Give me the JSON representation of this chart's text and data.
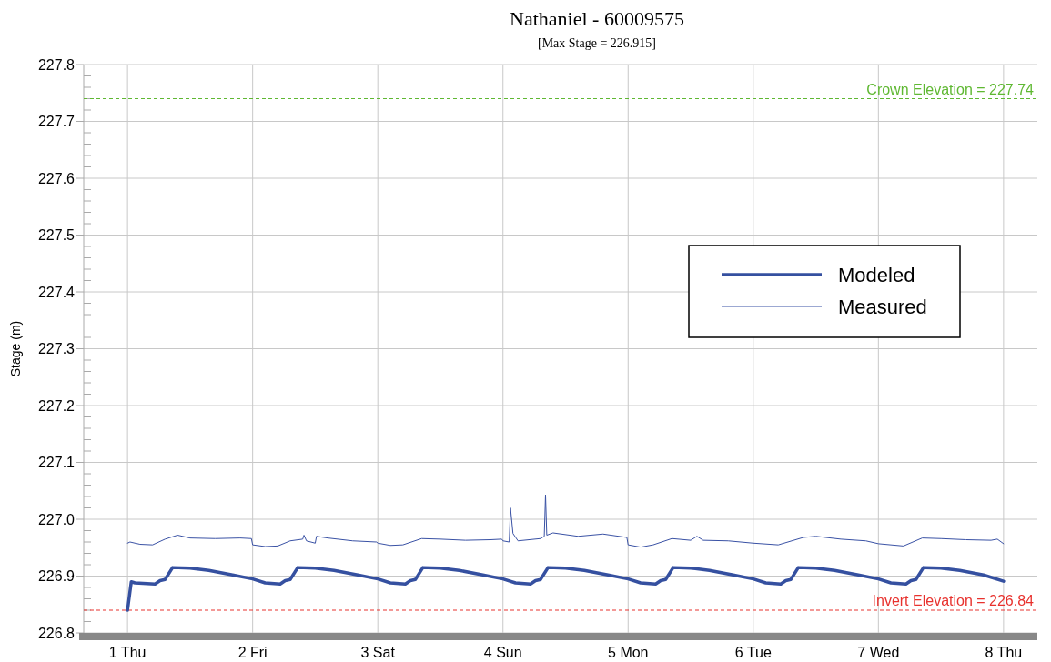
{
  "chart_data": {
    "type": "line",
    "title": "Nathaniel - 60009575",
    "subtitle": "[Max Stage = 226.915]",
    "ylabel": "Stage (m)",
    "xlim": [
      0.65,
      8.27
    ],
    "xticks": [
      {
        "value": 1,
        "label": "1 Thu"
      },
      {
        "value": 2,
        "label": "2 Fri"
      },
      {
        "value": 3,
        "label": "3 Sat"
      },
      {
        "value": 4,
        "label": "4 Sun"
      },
      {
        "value": 5,
        "label": "5 Mon"
      },
      {
        "value": 6,
        "label": "6 Tue"
      },
      {
        "value": 7,
        "label": "7 Wed"
      },
      {
        "value": 8,
        "label": "8 Thu"
      }
    ],
    "ylim": [
      226.8,
      227.8
    ],
    "yticks": [
      226.8,
      {
        "value": 226.82,
        "label": null
      },
      {
        "value": 226.84,
        "label": null
      },
      {
        "value": 226.86,
        "label": null
      },
      {
        "value": 226.88,
        "label": null
      },
      226.9,
      {
        "value": 226.92,
        "label": null
      },
      {
        "value": 226.94,
        "label": null
      },
      {
        "value": 226.96,
        "label": null
      },
      {
        "value": 226.98,
        "label": null
      },
      {
        "value": 227.0,
        "label": "227.0"
      },
      {
        "value": 227.02,
        "label": null
      },
      {
        "value": 227.04,
        "label": null
      },
      {
        "value": 227.06,
        "label": null
      },
      {
        "value": 227.08,
        "label": null
      },
      227.1,
      {
        "value": 227.12,
        "label": null
      },
      {
        "value": 227.14,
        "label": null
      },
      {
        "value": 227.16,
        "label": null
      },
      {
        "value": 227.18,
        "label": null
      },
      227.2,
      {
        "value": 227.22,
        "label": null
      },
      {
        "value": 227.24,
        "label": null
      },
      {
        "value": 227.26,
        "label": null
      },
      {
        "value": 227.28,
        "label": null
      },
      227.3,
      {
        "value": 227.32,
        "label": null
      },
      {
        "value": 227.34,
        "label": null
      },
      {
        "value": 227.36,
        "label": null
      },
      {
        "value": 227.38,
        "label": null
      },
      227.4,
      {
        "value": 227.42,
        "label": null
      },
      {
        "value": 227.44,
        "label": null
      },
      {
        "value": 227.46,
        "label": null
      },
      {
        "value": 227.48,
        "label": null
      },
      227.5,
      {
        "value": 227.52,
        "label": null
      },
      {
        "value": 227.54,
        "label": null
      },
      {
        "value": 227.56,
        "label": null
      },
      {
        "value": 227.58,
        "label": null
      },
      227.6,
      {
        "value": 227.62,
        "label": null
      },
      {
        "value": 227.64,
        "label": null
      },
      {
        "value": 227.66,
        "label": null
      },
      {
        "value": 227.68,
        "label": null
      },
      227.7,
      {
        "value": 227.72,
        "label": null
      },
      {
        "value": 227.74,
        "label": null
      },
      {
        "value": 227.76,
        "label": null
      },
      {
        "value": 227.78,
        "label": null
      },
      227.8
    ],
    "grid": true,
    "legend": "right",
    "marker": "none",
    "line_style": "solid",
    "ref_lines": [
      {
        "axis": "y",
        "value": 227.74,
        "label": "Crown Elevation = 227.74",
        "color": "#5fb832",
        "line_style": "dashed"
      },
      {
        "axis": "y",
        "value": 226.84,
        "label": "Invert Elevation = 226.84",
        "color": "#e8322e",
        "line_style": "dashed"
      }
    ],
    "series": [
      {
        "name": "Modeled",
        "color": "#3550a0",
        "x": [
          1.0,
          1.03,
          1.06,
          1.22,
          1.26,
          1.3,
          1.36,
          1.5,
          1.65,
          1.84,
          2.0,
          2.1,
          2.22,
          2.26,
          2.3,
          2.36,
          2.5,
          2.65,
          2.84,
          3.0,
          3.1,
          3.22,
          3.26,
          3.3,
          3.36,
          3.5,
          3.65,
          3.84,
          4.0,
          4.1,
          4.22,
          4.26,
          4.3,
          4.36,
          4.5,
          4.65,
          4.84,
          5.0,
          5.1,
          5.22,
          5.26,
          5.3,
          5.36,
          5.5,
          5.65,
          5.84,
          6.0,
          6.1,
          6.22,
          6.26,
          6.3,
          6.36,
          6.5,
          6.65,
          6.84,
          7.0,
          7.1,
          7.22,
          7.26,
          7.3,
          7.36,
          7.5,
          7.65,
          7.84,
          8.0
        ],
        "values": [
          226.84,
          226.89,
          226.888,
          226.886,
          226.892,
          226.894,
          226.915,
          226.914,
          226.91,
          226.902,
          226.895,
          226.888,
          226.886,
          226.892,
          226.894,
          226.915,
          226.914,
          226.91,
          226.902,
          226.895,
          226.888,
          226.886,
          226.892,
          226.894,
          226.915,
          226.914,
          226.91,
          226.902,
          226.895,
          226.888,
          226.886,
          226.892,
          226.894,
          226.915,
          226.914,
          226.91,
          226.902,
          226.895,
          226.888,
          226.886,
          226.892,
          226.894,
          226.915,
          226.914,
          226.91,
          226.902,
          226.895,
          226.888,
          226.886,
          226.892,
          226.894,
          226.915,
          226.914,
          226.91,
          226.902,
          226.895,
          226.888,
          226.886,
          226.892,
          226.894,
          226.915,
          226.914,
          226.91,
          226.902,
          226.891
        ]
      },
      {
        "name": "Measured",
        "color": "#3a52a5",
        "x": [
          1.0,
          1.02,
          1.1,
          1.2,
          1.3,
          1.4,
          1.5,
          1.7,
          1.9,
          1.99,
          2.0,
          2.1,
          2.2,
          2.3,
          2.4,
          2.41,
          2.43,
          2.5,
          2.51,
          2.6,
          2.8,
          2.99,
          3.0,
          3.1,
          3.2,
          3.35,
          3.5,
          3.7,
          3.9,
          3.99,
          4.0,
          4.05,
          4.06,
          4.08,
          4.12,
          4.3,
          4.33,
          4.34,
          4.35,
          4.4,
          4.6,
          4.8,
          4.99,
          5.0,
          5.1,
          5.2,
          5.35,
          5.5,
          5.55,
          5.6,
          5.8,
          6.0,
          6.2,
          6.4,
          6.5,
          6.7,
          6.9,
          7.0,
          7.2,
          7.35,
          7.5,
          7.7,
          7.9,
          7.95,
          8.0
        ],
        "values": [
          226.958,
          226.96,
          226.956,
          226.955,
          226.965,
          226.972,
          226.967,
          226.966,
          226.967,
          226.966,
          226.955,
          226.952,
          226.953,
          226.962,
          226.965,
          226.972,
          226.962,
          226.958,
          226.97,
          226.967,
          226.962,
          226.96,
          226.958,
          226.954,
          226.955,
          226.966,
          226.965,
          226.963,
          226.964,
          226.965,
          226.962,
          226.96,
          227.02,
          226.975,
          226.962,
          226.966,
          226.97,
          227.043,
          226.972,
          226.976,
          226.97,
          226.974,
          226.968,
          226.955,
          226.951,
          226.955,
          226.966,
          226.963,
          226.97,
          226.963,
          226.962,
          226.958,
          226.955,
          226.968,
          226.97,
          226.965,
          226.962,
          226.957,
          226.953,
          226.967,
          226.966,
          226.964,
          226.963,
          226.965,
          226.957
        ]
      }
    ]
  }
}
